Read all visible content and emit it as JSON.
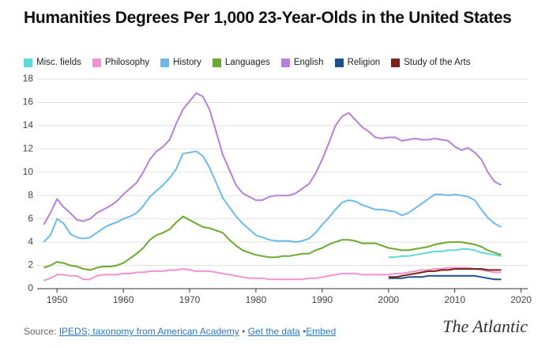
{
  "chart_data": {
    "type": "line",
    "title": "Humanities Degrees Per 1,000 23-Year-Olds in the United States",
    "x": [
      1948,
      1949,
      1950,
      1951,
      1952,
      1953,
      1954,
      1955,
      1956,
      1957,
      1958,
      1959,
      1960,
      1961,
      1962,
      1963,
      1964,
      1965,
      1966,
      1967,
      1968,
      1969,
      1970,
      1971,
      1972,
      1973,
      1974,
      1975,
      1976,
      1977,
      1978,
      1979,
      1980,
      1981,
      1982,
      1983,
      1984,
      1985,
      1986,
      1987,
      1988,
      1989,
      1990,
      1991,
      1992,
      1993,
      1994,
      1995,
      1996,
      1997,
      1998,
      1999,
      2000,
      2001,
      2002,
      2003,
      2004,
      2005,
      2006,
      2007,
      2008,
      2009,
      2010,
      2011,
      2012,
      2013,
      2014,
      2015,
      2016,
      2017
    ],
    "xlim": [
      1947,
      2021
    ],
    "xticks": [
      1950,
      1960,
      1970,
      1980,
      1990,
      2000,
      2010,
      2020
    ],
    "ylim": [
      0,
      18
    ],
    "yticks": [
      0,
      2,
      4,
      6,
      8,
      10,
      12,
      14,
      16,
      18
    ],
    "grid": true,
    "series": [
      {
        "name": "Misc. fields",
        "color": "#5fd8d8",
        "values": [
          null,
          null,
          null,
          null,
          null,
          null,
          null,
          null,
          null,
          null,
          null,
          null,
          null,
          null,
          null,
          null,
          null,
          null,
          null,
          null,
          null,
          null,
          null,
          null,
          null,
          null,
          null,
          null,
          null,
          null,
          null,
          null,
          null,
          null,
          null,
          null,
          null,
          null,
          null,
          null,
          null,
          null,
          null,
          null,
          null,
          null,
          null,
          null,
          null,
          null,
          null,
          null,
          2.7,
          2.7,
          2.8,
          2.8,
          2.9,
          3.0,
          3.1,
          3.2,
          3.2,
          3.3,
          3.3,
          3.4,
          3.4,
          3.3,
          3.1,
          3.0,
          2.9,
          2.8
        ]
      },
      {
        "name": "Philosophy",
        "color": "#f292d2",
        "values": [
          0.7,
          0.9,
          1.2,
          1.2,
          1.1,
          1.1,
          0.8,
          0.8,
          1.1,
          1.2,
          1.2,
          1.2,
          1.3,
          1.3,
          1.4,
          1.4,
          1.5,
          1.5,
          1.5,
          1.6,
          1.6,
          1.7,
          1.6,
          1.5,
          1.5,
          1.5,
          1.4,
          1.3,
          1.2,
          1.1,
          1.0,
          0.9,
          0.9,
          0.9,
          0.8,
          0.8,
          0.8,
          0.8,
          0.8,
          0.8,
          0.9,
          0.9,
          1.0,
          1.1,
          1.2,
          1.3,
          1.3,
          1.3,
          1.2,
          1.2,
          1.2,
          1.2,
          1.2,
          1.3,
          1.3,
          1.4,
          1.5,
          1.6,
          1.6,
          1.7,
          1.7,
          1.8,
          1.8,
          1.8,
          1.8,
          1.7,
          1.6,
          1.5,
          1.4,
          1.4
        ]
      },
      {
        "name": "History",
        "color": "#6bbaec",
        "values": [
          4.0,
          4.6,
          6.0,
          5.6,
          4.7,
          4.4,
          4.3,
          4.4,
          4.8,
          5.2,
          5.5,
          5.7,
          6.0,
          6.2,
          6.5,
          7.1,
          7.9,
          8.4,
          8.9,
          9.5,
          10.3,
          11.6,
          11.7,
          11.8,
          11.4,
          10.4,
          9.1,
          7.8,
          7.0,
          6.2,
          5.6,
          5.1,
          4.6,
          4.4,
          4.2,
          4.1,
          4.1,
          4.1,
          4.0,
          4.1,
          4.3,
          4.8,
          5.5,
          6.1,
          6.8,
          7.4,
          7.6,
          7.5,
          7.2,
          7.0,
          6.8,
          6.8,
          6.7,
          6.6,
          6.3,
          6.5,
          6.9,
          7.3,
          7.7,
          8.1,
          8.1,
          8.0,
          8.1,
          8.0,
          7.9,
          7.6,
          6.8,
          6.1,
          5.6,
          5.3
        ]
      },
      {
        "name": "Languages",
        "color": "#6aab2e",
        "values": [
          1.8,
          2.0,
          2.3,
          2.2,
          2.0,
          1.9,
          1.7,
          1.6,
          1.8,
          1.9,
          1.9,
          2.0,
          2.2,
          2.6,
          3.0,
          3.5,
          4.2,
          4.6,
          4.8,
          5.1,
          5.7,
          6.2,
          5.9,
          5.6,
          5.3,
          5.2,
          5.0,
          4.8,
          4.2,
          3.7,
          3.3,
          3.1,
          2.9,
          2.8,
          2.7,
          2.7,
          2.8,
          2.8,
          2.9,
          3.0,
          3.0,
          3.3,
          3.5,
          3.8,
          4.0,
          4.2,
          4.2,
          4.1,
          3.9,
          3.9,
          3.9,
          3.7,
          3.5,
          3.4,
          3.3,
          3.3,
          3.4,
          3.5,
          3.6,
          3.8,
          3.9,
          4.0,
          4.0,
          4.0,
          3.9,
          3.8,
          3.6,
          3.3,
          3.1,
          2.9
        ]
      },
      {
        "name": "English",
        "color": "#b680d9",
        "values": [
          5.5,
          6.5,
          7.7,
          7.0,
          6.5,
          5.9,
          5.8,
          6.0,
          6.5,
          6.8,
          7.1,
          7.5,
          8.1,
          8.6,
          9.1,
          10.0,
          11.1,
          11.8,
          12.2,
          12.8,
          14.2,
          15.4,
          16.1,
          16.8,
          16.5,
          15.4,
          13.5,
          11.5,
          10.2,
          8.9,
          8.2,
          7.9,
          7.6,
          7.6,
          7.9,
          8.0,
          8.0,
          8.0,
          8.2,
          8.6,
          9.0,
          9.9,
          11.1,
          12.5,
          14.0,
          14.8,
          15.1,
          14.5,
          13.9,
          13.5,
          13.0,
          12.9,
          13.0,
          13.0,
          12.7,
          12.8,
          12.9,
          12.8,
          12.8,
          12.9,
          12.8,
          12.7,
          12.2,
          11.9,
          12.1,
          11.7,
          11.1,
          10.0,
          9.2,
          8.9
        ]
      },
      {
        "name": "Religion",
        "color": "#1f4e8c",
        "values": [
          null,
          null,
          null,
          null,
          null,
          null,
          null,
          null,
          null,
          null,
          null,
          null,
          null,
          null,
          null,
          null,
          null,
          null,
          null,
          null,
          null,
          null,
          null,
          null,
          null,
          null,
          null,
          null,
          null,
          null,
          null,
          null,
          null,
          null,
          null,
          null,
          null,
          null,
          null,
          null,
          null,
          null,
          null,
          null,
          null,
          null,
          null,
          null,
          null,
          null,
          null,
          null,
          0.9,
          0.9,
          0.9,
          1.0,
          1.0,
          1.0,
          1.1,
          1.1,
          1.1,
          1.1,
          1.1,
          1.1,
          1.1,
          1.1,
          1.0,
          0.9,
          0.8,
          0.8
        ]
      },
      {
        "name": "Study of the Arts",
        "color": "#7a2318",
        "values": [
          null,
          null,
          null,
          null,
          null,
          null,
          null,
          null,
          null,
          null,
          null,
          null,
          null,
          null,
          null,
          null,
          null,
          null,
          null,
          null,
          null,
          null,
          null,
          null,
          null,
          null,
          null,
          null,
          null,
          null,
          null,
          null,
          null,
          null,
          null,
          null,
          null,
          null,
          null,
          null,
          null,
          null,
          null,
          null,
          null,
          null,
          null,
          null,
          null,
          null,
          null,
          null,
          1.0,
          1.0,
          1.1,
          1.2,
          1.3,
          1.4,
          1.5,
          1.5,
          1.6,
          1.6,
          1.7,
          1.7,
          1.7,
          1.7,
          1.7,
          1.6,
          1.6,
          1.6
        ]
      }
    ]
  },
  "footer": {
    "source_label": "Source:",
    "links": [
      "IPEDS; taxonomy from American Academy",
      "Get the data",
      "Embed"
    ],
    "separator": "•",
    "logo": "The Atlantic"
  }
}
